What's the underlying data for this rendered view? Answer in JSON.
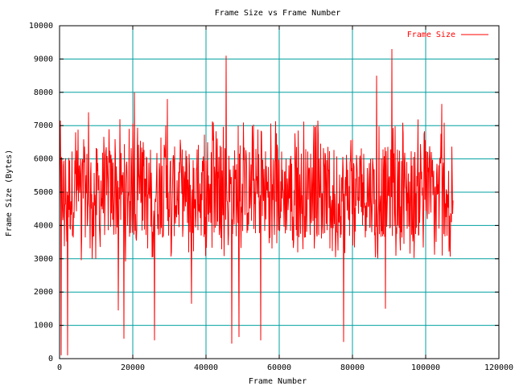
{
  "chart_data": {
    "type": "line",
    "title": "Frame Size vs Frame Number",
    "xlabel": "Frame Number",
    "ylabel": "Frame Size (Bytes)",
    "xlim": [
      0,
      120000
    ],
    "ylim": [
      0,
      10000
    ],
    "xticks": [
      0,
      20000,
      40000,
      60000,
      80000,
      100000,
      120000
    ],
    "xtick_labels": [
      "0",
      "20000",
      "40000",
      "60000",
      "80000",
      "100000",
      "120000"
    ],
    "yticks": [
      0,
      1000,
      2000,
      3000,
      4000,
      5000,
      6000,
      7000,
      8000,
      9000,
      10000
    ],
    "ytick_labels": [
      "0",
      "1000",
      "2000",
      "3000",
      "4000",
      "5000",
      "6000",
      "7000",
      "8000",
      "9000",
      "10000"
    ],
    "grid": true,
    "legend_position": "top-right",
    "colors": {
      "series": "#ff0000",
      "grid": "#00a0a0",
      "axes": "#000000"
    },
    "series": [
      {
        "name": "Frame Size",
        "x_start": 0,
        "x_end": 107500,
        "baseline_mean": 5000,
        "typical_band": [
          3800,
          6300
        ],
        "spikes": [
          {
            "x": 300,
            "y": 7150
          },
          {
            "x": 500,
            "y": 100
          },
          {
            "x": 2300,
            "y": 100
          },
          {
            "x": 8000,
            "y": 7400
          },
          {
            "x": 16000,
            "y": 1450
          },
          {
            "x": 17500,
            "y": 600
          },
          {
            "x": 20500,
            "y": 8000
          },
          {
            "x": 26000,
            "y": 550
          },
          {
            "x": 29500,
            "y": 7800
          },
          {
            "x": 36000,
            "y": 1650
          },
          {
            "x": 45500,
            "y": 9100
          },
          {
            "x": 47000,
            "y": 450
          },
          {
            "x": 49000,
            "y": 650
          },
          {
            "x": 55000,
            "y": 550
          },
          {
            "x": 77500,
            "y": 500
          },
          {
            "x": 86500,
            "y": 8500
          },
          {
            "x": 89000,
            "y": 1500
          },
          {
            "x": 90800,
            "y": 9300
          },
          {
            "x": 104500,
            "y": 7650
          }
        ]
      }
    ]
  }
}
